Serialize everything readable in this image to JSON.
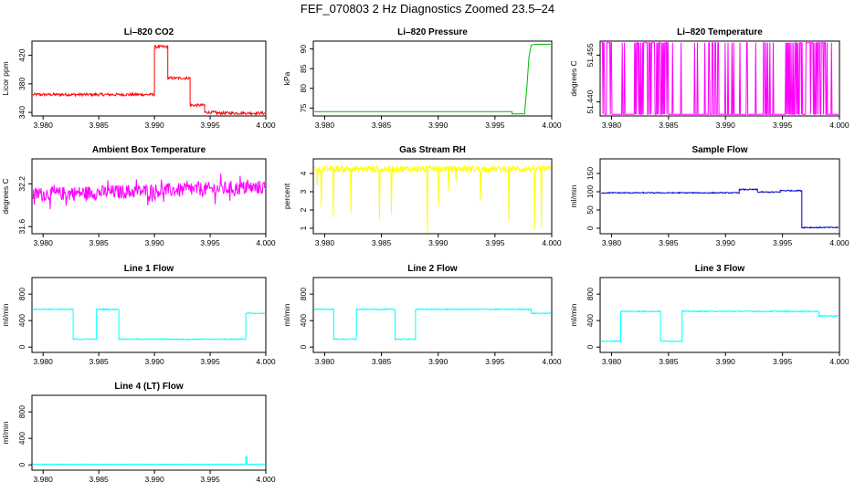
{
  "page": {
    "title": "FEF_070803  2 Hz Diagnostics Zoomed 23.5–24"
  },
  "chart_data": [
    {
      "id": "li820-co2",
      "type": "line",
      "title": "Li–820 CO2",
      "ylabel": "Licor ppm",
      "color": "#ff0000",
      "x_ticks": [
        "3.980",
        "3.985",
        "3.990",
        "3.995",
        "4.000"
      ],
      "x_tick_values": [
        3.98,
        3.985,
        3.99,
        3.995,
        4.0
      ],
      "xlim": [
        3.979,
        4.0
      ],
      "y_ticks": [
        "340",
        "380",
        "420"
      ],
      "y_tick_values": [
        340,
        380,
        420
      ],
      "ylim": [
        335,
        440
      ],
      "x": [
        3.9791,
        3.9888,
        3.99,
        3.99,
        3.9912,
        3.9912,
        3.9932,
        3.9932,
        3.9945,
        3.9945,
        3.9955,
        3.9955,
        3.9999
      ],
      "y": [
        365,
        365,
        365,
        432,
        432,
        388,
        388,
        350,
        350,
        340,
        340,
        339,
        339
      ],
      "noise": 2
    },
    {
      "id": "li820-pressure",
      "type": "line",
      "title": "Li–820 Pressure",
      "ylabel": "kPa",
      "color": "#00bb00",
      "x_ticks": [
        "3.980",
        "3.985",
        "3.990",
        "3.995",
        "4.000"
      ],
      "x_tick_values": [
        3.98,
        3.985,
        3.99,
        3.995,
        4.0
      ],
      "xlim": [
        3.979,
        4.0
      ],
      "y_ticks": [
        "75",
        "80",
        "85",
        "90"
      ],
      "y_tick_values": [
        75,
        80,
        85,
        90
      ],
      "ylim": [
        73,
        92
      ],
      "x": [
        3.9791,
        3.9965,
        3.9965,
        3.9976,
        3.9978,
        3.998,
        3.9982,
        3.9985,
        3.9999
      ],
      "y": [
        74.1,
        74.1,
        73.5,
        73.5,
        80,
        88,
        91,
        91.2,
        91.2
      ],
      "noise": 0
    },
    {
      "id": "li820-temperature",
      "type": "line",
      "title": "Li–820 Temperature",
      "ylabel": "degrees C",
      "color": "#ff00ff",
      "x_ticks": [
        "3.980",
        "3.985",
        "3.990",
        "3.995",
        "4.000"
      ],
      "x_tick_values": [
        3.98,
        3.985,
        3.99,
        3.995,
        4.0
      ],
      "xlim": [
        3.979,
        4.0
      ],
      "y_ticks": [
        "51.440",
        "51.455"
      ],
      "y_tick_values": [
        51.44,
        51.455
      ],
      "ylim": [
        51.4355,
        51.4595
      ],
      "levels": [
        51.436,
        51.459
      ],
      "noise": 0
    },
    {
      "id": "ambient-box-temperature",
      "type": "line",
      "title": "Ambient Box Temperature",
      "ylabel": "degrees C",
      "color": "#ff00ff",
      "x_ticks": [
        "3.980",
        "3.985",
        "3.990",
        "3.995",
        "4.000"
      ],
      "x_tick_values": [
        3.98,
        3.985,
        3.99,
        3.995,
        4.0
      ],
      "xlim": [
        3.979,
        4.0
      ],
      "y_ticks": [
        "31.6",
        "32.2"
      ],
      "y_tick_values": [
        31.6,
        32.2
      ],
      "ylim": [
        31.5,
        32.55
      ],
      "x": [
        3.9791,
        3.9999
      ],
      "y": [
        32.05,
        32.15
      ],
      "noise": 0.1
    },
    {
      "id": "gas-stream-rh",
      "type": "line",
      "title": "Gas Stream RH",
      "ylabel": "percent",
      "color": "#ffff00",
      "x_ticks": [
        "3.980",
        "3.985",
        "3.990",
        "3.995",
        "4.000"
      ],
      "x_tick_values": [
        3.98,
        3.985,
        3.99,
        3.995,
        4.0
      ],
      "xlim": [
        3.979,
        4.0
      ],
      "y_ticks": [
        "1",
        "2",
        "3",
        "4"
      ],
      "y_tick_values": [
        1,
        2,
        3,
        4
      ],
      "ylim": [
        0.7,
        4.8
      ],
      "x": [
        3.9791,
        3.9999
      ],
      "y": [
        4.25,
        4.25
      ],
      "noise": 0.18
    },
    {
      "id": "sample-flow",
      "type": "line",
      "title": "Sample Flow",
      "ylabel": "ml/min",
      "color": "#0000cc",
      "x_ticks": [
        "3.980",
        "3.985",
        "3.990",
        "3.995",
        "4.000"
      ],
      "x_tick_values": [
        3.98,
        3.985,
        3.99,
        3.995,
        4.0
      ],
      "xlim": [
        3.979,
        4.0
      ],
      "y_ticks": [
        "0",
        "50",
        "100",
        "150"
      ],
      "y_tick_values": [
        0,
        50,
        100,
        150
      ],
      "ylim": [
        -15,
        190
      ],
      "x": [
        3.9791,
        3.9912,
        3.9912,
        3.9928,
        3.9928,
        3.9948,
        3.9948,
        3.9967,
        3.9967,
        3.9999
      ],
      "y": [
        97,
        97,
        106,
        106,
        99,
        99,
        103,
        103,
        2,
        2
      ],
      "noise": 1.5
    },
    {
      "id": "line-1-flow",
      "type": "line",
      "title": "Line 1 Flow",
      "ylabel": "ml/min",
      "color": "#00ffff",
      "x_ticks": [
        "3.980",
        "3.985",
        "3.990",
        "3.995",
        "4.000"
      ],
      "x_tick_values": [
        3.98,
        3.985,
        3.99,
        3.995,
        4.0
      ],
      "xlim": [
        3.979,
        4.0
      ],
      "y_ticks": [
        "0",
        "400",
        "800"
      ],
      "y_tick_values": [
        0,
        400,
        800
      ],
      "ylim": [
        -80,
        1050
      ],
      "x": [
        3.9791,
        3.9827,
        3.9827,
        3.9848,
        3.9848,
        3.9868,
        3.9868,
        3.9982,
        3.9982,
        3.9999
      ],
      "y": [
        570,
        570,
        120,
        120,
        570,
        570,
        120,
        120,
        510,
        510
      ],
      "noise": 8
    },
    {
      "id": "line-2-flow",
      "type": "line",
      "title": "Line 2 Flow",
      "ylabel": "ml/min",
      "color": "#00ffff",
      "x_ticks": [
        "3.980",
        "3.985",
        "3.990",
        "3.995",
        "4.000"
      ],
      "x_tick_values": [
        3.98,
        3.985,
        3.99,
        3.995,
        4.0
      ],
      "xlim": [
        3.979,
        4.0
      ],
      "y_ticks": [
        "0",
        "400",
        "800"
      ],
      "y_tick_values": [
        0,
        400,
        800
      ],
      "ylim": [
        -80,
        1050
      ],
      "x": [
        3.9791,
        3.9808,
        3.9808,
        3.9828,
        3.9828,
        3.9862,
        3.9862,
        3.988,
        3.988,
        3.9982,
        3.9982,
        3.9999
      ],
      "y": [
        570,
        570,
        120,
        120,
        570,
        570,
        120,
        120,
        570,
        570,
        510,
        510
      ],
      "noise": 8
    },
    {
      "id": "line-3-flow",
      "type": "line",
      "title": "Line 3 Flow",
      "ylabel": "ml/min",
      "color": "#00ffff",
      "x_ticks": [
        "3.980",
        "3.985",
        "3.990",
        "3.995",
        "4.000"
      ],
      "x_tick_values": [
        3.98,
        3.985,
        3.99,
        3.995,
        4.0
      ],
      "xlim": [
        3.979,
        4.0
      ],
      "y_ticks": [
        "0",
        "400",
        "800"
      ],
      "y_tick_values": [
        0,
        400,
        800
      ],
      "ylim": [
        -80,
        1050
      ],
      "x": [
        3.9791,
        3.9808,
        3.9808,
        3.9843,
        3.9843,
        3.9862,
        3.9862,
        3.9982,
        3.9982,
        3.9999
      ],
      "y": [
        90,
        90,
        540,
        540,
        90,
        90,
        540,
        540,
        470,
        470
      ],
      "noise": 8
    },
    {
      "id": "line-4-lt-flow",
      "type": "line",
      "title": "Line 4 (LT) Flow",
      "ylabel": "ml/min",
      "color": "#00ffff",
      "x_ticks": [
        "3.980",
        "3.985",
        "3.990",
        "3.995",
        "4.000"
      ],
      "x_tick_values": [
        3.98,
        3.985,
        3.99,
        3.995,
        4.0
      ],
      "xlim": [
        3.979,
        4.0
      ],
      "y_ticks": [
        "0",
        "400",
        "800"
      ],
      "y_tick_values": [
        0,
        400,
        800
      ],
      "ylim": [
        -80,
        1050
      ],
      "x": [
        3.9791,
        3.9982,
        3.9982,
        3.9983,
        3.9983,
        3.9999
      ],
      "y": [
        10,
        10,
        120,
        120,
        10,
        10
      ],
      "noise": 2
    }
  ]
}
